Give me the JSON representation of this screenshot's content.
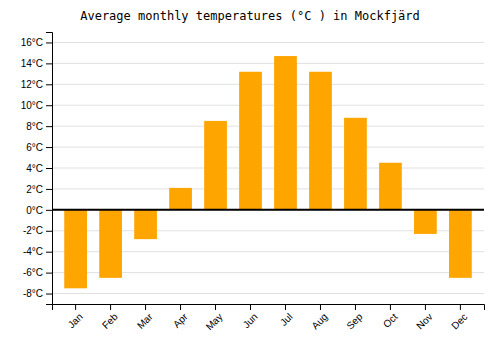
{
  "chart_data": {
    "type": "bar",
    "title": "Average monthly temperatures (°C ) in Mockfjärd",
    "categories": [
      "Jan",
      "Feb",
      "Mar",
      "Apr",
      "May",
      "Jun",
      "Jul",
      "Aug",
      "Sep",
      "Oct",
      "Nov",
      "Dec"
    ],
    "values": [
      -7.5,
      -6.5,
      -2.8,
      2.1,
      8.5,
      13.2,
      14.7,
      13.2,
      8.8,
      4.5,
      -2.3,
      -6.5
    ],
    "color": "#FFA500",
    "ylim": [
      -9,
      17
    ],
    "yticks": [
      {
        "value": -8,
        "label": "-8°C"
      },
      {
        "value": -6,
        "label": "-6°C"
      },
      {
        "value": -4,
        "label": "-4°C"
      },
      {
        "value": -2,
        "label": "-2°C"
      },
      {
        "value": 0,
        "label": "0°C"
      },
      {
        "value": 2,
        "label": "2°C"
      },
      {
        "value": 4,
        "label": "4°C"
      },
      {
        "value": 6,
        "label": "6°C"
      },
      {
        "value": 8,
        "label": "8°C"
      },
      {
        "value": 10,
        "label": "10°C"
      },
      {
        "value": 12,
        "label": "12°C"
      },
      {
        "value": 14,
        "label": "14°C"
      },
      {
        "value": 16,
        "label": "16°C"
      }
    ],
    "grid": true
  }
}
